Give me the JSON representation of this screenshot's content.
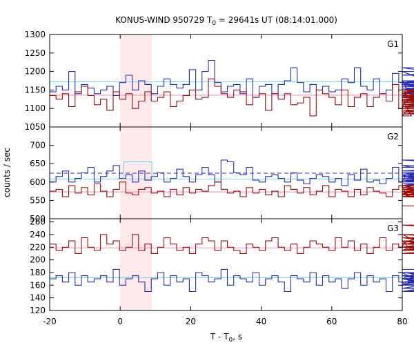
{
  "chart_data": {
    "type": "line",
    "title": "KONUS-WIND 950729 T",
    "title_sub": "0",
    "title_rest": " = 29641s UT (08:14:01.000)",
    "xlabel_main": "T - T",
    "xlabel_sub": "0",
    "xlabel_end": ", s",
    "ylabel": "counts / sec",
    "xlim": [
      -20,
      80
    ],
    "xticks": [
      -20,
      0,
      20,
      40,
      60,
      80
    ],
    "x_start": -20,
    "bin_width": 1.8,
    "highlight_interval": [
      0,
      9
    ],
    "colors": {
      "blue": "#2a2ab4",
      "red": "#9b0d0d",
      "cyan": "#6cd2e8",
      "pink": "#f08cbe",
      "highlight": "#fde8ea"
    },
    "panels": [
      {
        "label": "G1",
        "ylim": [
          1050,
          1300
        ],
        "yticks": [
          1050,
          1100,
          1150,
          1200,
          1250,
          1300
        ],
        "series": [
          {
            "color": "blue",
            "values": [
              1145,
              1160,
              1150,
              1200,
              1140,
              1165,
              1155,
              1140,
              1150,
              1160,
              1135,
              1170,
              1190,
              1150,
              1175,
              1165,
              1140,
              1160,
              1180,
              1165,
              1155,
              1165,
              1205,
              1150,
              1200,
              1230,
              1170,
              1145,
              1160,
              1165,
              1140,
              1180,
              1130,
              1160,
              1165,
              1140,
              1165,
              1175,
              1210,
              1170,
              1145,
              1165,
              1150,
              1160,
              1145,
              1150,
              1180,
              1170,
              1210,
              1160,
              1150,
              1180,
              1140,
              1150,
              1195,
              1170,
              1175,
              1130,
              1165,
              1175,
              1165,
              1190,
              1200,
              1150,
              1160,
              1175,
              1145,
              1155,
              1155,
              1150,
              1140,
              1175,
              1150,
              1165,
              1150,
              1210,
              1165,
              1140,
              1160,
              1165,
              1150,
              1160,
              1170,
              1160,
              1155,
              1135,
              1145,
              1175,
              1140,
              1160,
              1170,
              1140,
              1160,
              1145,
              1175,
              1150,
              1145,
              1175,
              1170,
              1190
            ]
          },
          {
            "color": "red",
            "values": [
              1135,
              1125,
              1140,
              1105,
              1145,
              1160,
              1135,
              1110,
              1125,
              1095,
              1145,
              1125,
              1140,
              1100,
              1120,
              1145,
              1120,
              1130,
              1145,
              1105,
              1120,
              1135,
              1150,
              1125,
              1130,
              1180,
              1160,
              1140,
              1130,
              1150,
              1145,
              1110,
              1130,
              1140,
              1095,
              1140,
              1125,
              1140,
              1110,
              1115,
              1130,
              1080,
              1150,
              1140,
              1130,
              1110,
              1150,
              1105,
              1130,
              1140,
              1105,
              1130,
              1140,
              1120,
              1165,
              1100,
              1125,
              1080,
              1130,
              1145,
              1125,
              1115,
              1140,
              1100,
              1135,
              1120,
              1145,
              1090,
              1130,
              1150,
              1125,
              1130,
              1145,
              1135,
              1130,
              1095,
              1110,
              1100,
              1135,
              1120,
              1105,
              1145,
              1130,
              1085,
              1110,
              1140,
              1125,
              1100,
              1135,
              1120,
              1090,
              1140,
              1120,
              1145,
              1130,
              1115,
              1150,
              1125,
              1135,
              1110
            ]
          }
        ],
        "ref_lines": [
          {
            "color": "cyan",
            "value": 1172,
            "dashed": false
          },
          {
            "color": "pink",
            "value": 1136,
            "dashed": false
          }
        ]
      },
      {
        "label": "G2",
        "ylim": [
          500,
          750
        ],
        "yticks": [
          500,
          550,
          600,
          650,
          700
        ],
        "series": [
          {
            "color": "blue",
            "values": [
              600,
              615,
              630,
              600,
              610,
              625,
              640,
              600,
              615,
              630,
              645,
              610,
              620,
              600,
              630,
              605,
              615,
              625,
              600,
              610,
              635,
              615,
              600,
              620,
              640,
              620,
              600,
              660,
              655,
              625,
              620,
              640,
              605,
              600,
              615,
              620,
              610,
              600,
              625,
              605,
              595,
              610,
              620,
              615,
              600,
              610,
              590,
              620,
              605,
              635,
              600,
              605,
              595,
              610,
              640,
              600,
              615,
              625,
              620,
              595,
              590,
              600,
              620,
              605,
              600,
              615,
              600,
              630,
              645,
              605,
              590,
              615,
              600,
              620,
              610,
              595,
              605,
              620,
              610,
              600,
              625,
              610,
              615,
              590,
              600,
              630,
              625,
              600,
              620,
              610,
              630,
              640,
              660,
              620,
              615,
              605,
              595,
              615,
              625,
              640
            ]
          },
          {
            "color": "red",
            "values": [
              575,
              580,
              560,
              590,
              570,
              585,
              565,
              595,
              575,
              560,
              580,
              600,
              570,
              565,
              580,
              585,
              570,
              575,
              560,
              580,
              565,
              585,
              570,
              580,
              575,
              590,
              600,
              580,
              570,
              575,
              560,
              585,
              570,
              580,
              565,
              575,
              560,
              590,
              580,
              570,
              585,
              565,
              575,
              590,
              560,
              580,
              575,
              560,
              580,
              565,
              585,
              575,
              570,
              560,
              580,
              590,
              570,
              565,
              585,
              575,
              560,
              580,
              570,
              590,
              565,
              580,
              560,
              575,
              585,
              570,
              580,
              565,
              590,
              575,
              560,
              580,
              570,
              585,
              575,
              560,
              580,
              565,
              590,
              575,
              560,
              580,
              570,
              585,
              575,
              560,
              580,
              565,
              590,
              575,
              560,
              580,
              570,
              585,
              560,
              535
            ]
          }
        ],
        "ref_lines": [
          {
            "color": "blue",
            "value": 624,
            "dashed": true
          },
          {
            "color": "cyan",
            "value": 608,
            "dashed": false
          },
          {
            "color": "pink",
            "value": 573,
            "dashed": false
          }
        ]
      },
      {
        "label": "G3",
        "ylim": [
          120,
          265
        ],
        "yticks": [
          120,
          140,
          160,
          180,
          200,
          220,
          240,
          260
        ],
        "series": [
          {
            "color": "red",
            "values": [
              225,
              215,
              220,
              230,
              210,
              235,
              220,
              215,
              240,
              225,
              230,
              215,
              220,
              240,
              215,
              225,
              210,
              220,
              235,
              225,
              215,
              220,
              210,
              225,
              235,
              230,
              215,
              230,
              220,
              215,
              210,
              225,
              220,
              215,
              230,
              235,
              220,
              215,
              225,
              210,
              220,
              230,
              225,
              220,
              215,
              235,
              220,
              230,
              215,
              225,
              210,
              220,
              235,
              215,
              225,
              220,
              230,
              215,
              225,
              240,
              220,
              215,
              225,
              230,
              215,
              220,
              235,
              220,
              215,
              230,
              210,
              225,
              220,
              215,
              230,
              225,
              220,
              235,
              215,
              225,
              220,
              230,
              215,
              220,
              235,
              225,
              215,
              225,
              240,
              220,
              230,
              215,
              225,
              255,
              225,
              220,
              240,
              230,
              225,
              255
            ]
          },
          {
            "color": "blue",
            "values": [
              170,
              175,
              165,
              180,
              160,
              175,
              165,
              170,
              175,
              165,
              185,
              160,
              170,
              175,
              165,
              150,
              170,
              180,
              160,
              175,
              165,
              170,
              150,
              180,
              175,
              165,
              170,
              185,
              160,
              175,
              170,
              165,
              180,
              160,
              170,
              175,
              165,
              150,
              175,
              170,
              165,
              180,
              160,
              175,
              165,
              170,
              155,
              170,
              180,
              160,
              175,
              165,
              170,
              150,
              175,
              165,
              160,
              170,
              180,
              160,
              175,
              165,
              170,
              155,
              170,
              175,
              160,
              180,
              165,
              170,
              150,
              175,
              165,
              170,
              180,
              160,
              170,
              175,
              165,
              150,
              170,
              180,
              160,
              175,
              165,
              170,
              160,
              175,
              180,
              165,
              170,
              155,
              170,
              175,
              165,
              180,
              160,
              175,
              170,
              185
            ]
          }
        ],
        "ref_lines": [
          {
            "color": "pink",
            "value": 219,
            "dashed": false
          },
          {
            "color": "cyan",
            "value": 172,
            "dashed": false
          }
        ]
      }
    ],
    "extra_segments": [
      {
        "panel": 1,
        "color": "cyan",
        "x": [
          1,
          9
        ],
        "value": 655
      }
    ]
  }
}
